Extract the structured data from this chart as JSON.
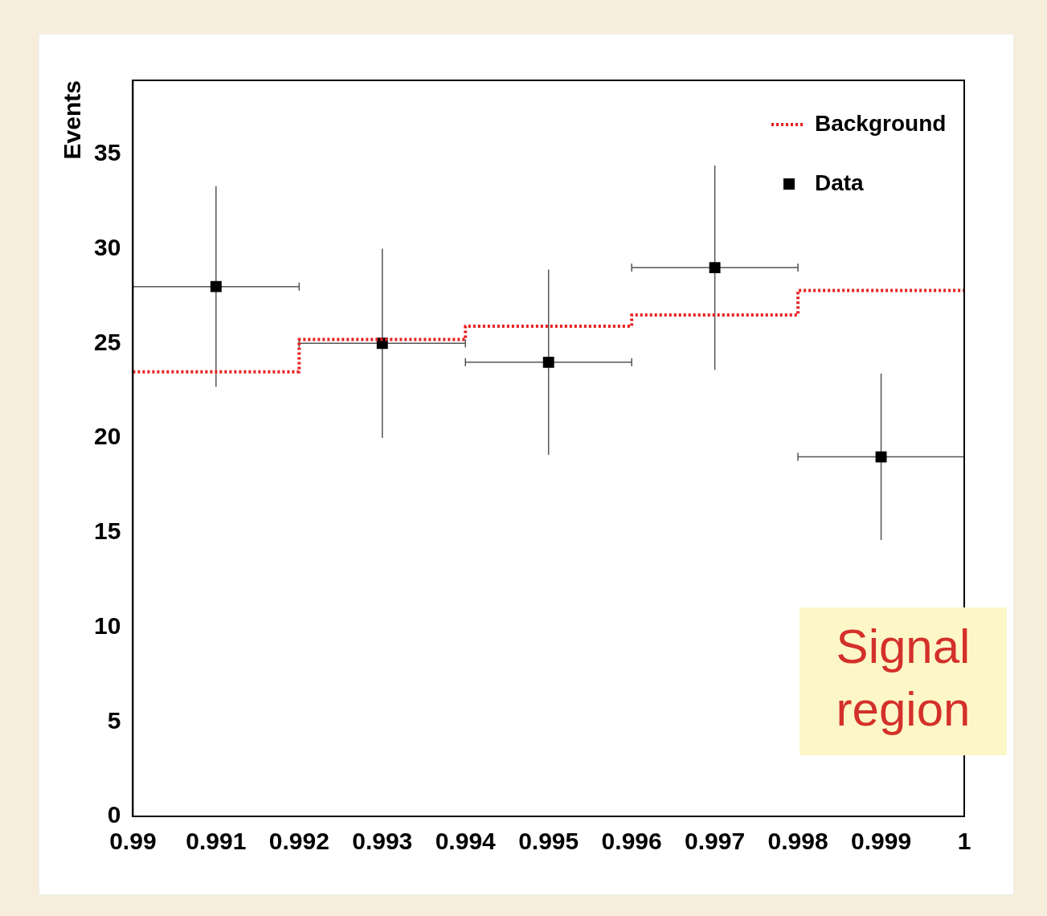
{
  "chart_data": {
    "type": "scatter",
    "ylabel": "Events",
    "xlim": [
      0.99,
      1
    ],
    "ylim": [
      0,
      38.9
    ],
    "xticks": [
      0.99,
      0.991,
      0.992,
      0.993,
      0.994,
      0.995,
      0.996,
      0.997,
      0.998,
      0.999,
      1
    ],
    "yticks": [
      0,
      5,
      10,
      15,
      20,
      25,
      30,
      35
    ],
    "grid": false,
    "legend": "top right",
    "annotations": [
      "Signal\nregion"
    ],
    "series": [
      {
        "name": "Background",
        "type": "step",
        "color": "#e82020",
        "line_style": "dotted",
        "marker": "none",
        "x": [
          0.99,
          0.992,
          0.994,
          0.996,
          0.998,
          1
        ],
        "values": [
          23.5,
          25.2,
          25.9,
          26.5,
          27.8,
          27.8
        ]
      },
      {
        "name": "Data",
        "type": "scatter",
        "color": "#000000",
        "marker": "square",
        "x": [
          0.991,
          0.993,
          0.995,
          0.997,
          0.999
        ],
        "values": [
          28,
          25,
          24,
          29,
          19
        ],
        "errors": [
          5.3,
          5,
          4.9,
          5.4,
          4.4
        ],
        "xerrors": [
          0.001,
          0.001,
          0.001,
          0.001,
          0.001
        ]
      }
    ]
  }
}
